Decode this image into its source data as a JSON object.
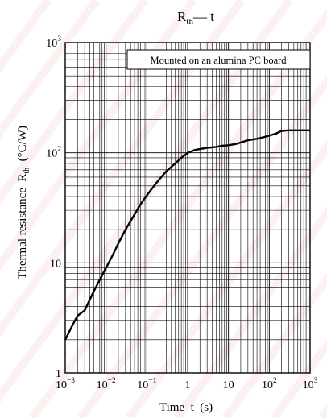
{
  "chart_data": {
    "type": "line",
    "title": {
      "main": "R",
      "sub": "th",
      "tail": "— t"
    },
    "annotation": "Mounted on an alumina PC board",
    "xlabel": "Time  t  (s)",
    "ylabel": {
      "main": "Thermal resistance  R",
      "sub": "th",
      "unit": "  (°C/W)"
    },
    "x_scale": "log",
    "y_scale": "log",
    "xlim": [
      0.001,
      1000
    ],
    "ylim": [
      1,
      1000
    ],
    "grid": true,
    "x_ticks": [
      {
        "value": 0.001,
        "base": "10",
        "exp": "−3"
      },
      {
        "value": 0.01,
        "base": "10",
        "exp": "−2"
      },
      {
        "value": 0.1,
        "base": "10",
        "exp": "−1"
      },
      {
        "value": 1,
        "base": "1",
        "exp": ""
      },
      {
        "value": 10,
        "base": "10",
        "exp": ""
      },
      {
        "value": 100,
        "base": "10",
        "exp": "2"
      },
      {
        "value": 1000,
        "base": "10",
        "exp": "3"
      }
    ],
    "y_ticks": [
      {
        "value": 1,
        "base": "1",
        "exp": ""
      },
      {
        "value": 10,
        "base": "10",
        "exp": ""
      },
      {
        "value": 100,
        "base": "10",
        "exp": "2"
      },
      {
        "value": 1000,
        "base": "10",
        "exp": "3"
      }
    ],
    "series": [
      {
        "color": "#000000",
        "x": [
          0.001,
          0.0015,
          0.002,
          0.003,
          0.005,
          0.007,
          0.01,
          0.015,
          0.02,
          0.03,
          0.05,
          0.07,
          0.1,
          0.15,
          0.2,
          0.3,
          0.5,
          0.7,
          1,
          1.5,
          2,
          3,
          5,
          7,
          10,
          15,
          20,
          30,
          50,
          70,
          100,
          150,
          200,
          300,
          500,
          700,
          1000
        ],
        "y": [
          2.0,
          2.7,
          3.3,
          3.7,
          5.5,
          7,
          9,
          12,
          15,
          20,
          27.5,
          34,
          41,
          50,
          57,
          68,
          80,
          90,
          100,
          106,
          108,
          111,
          113,
          116,
          117,
          120,
          124,
          130,
          134,
          138,
          143,
          150,
          158,
          160,
          160,
          160,
          160
        ]
      }
    ]
  }
}
